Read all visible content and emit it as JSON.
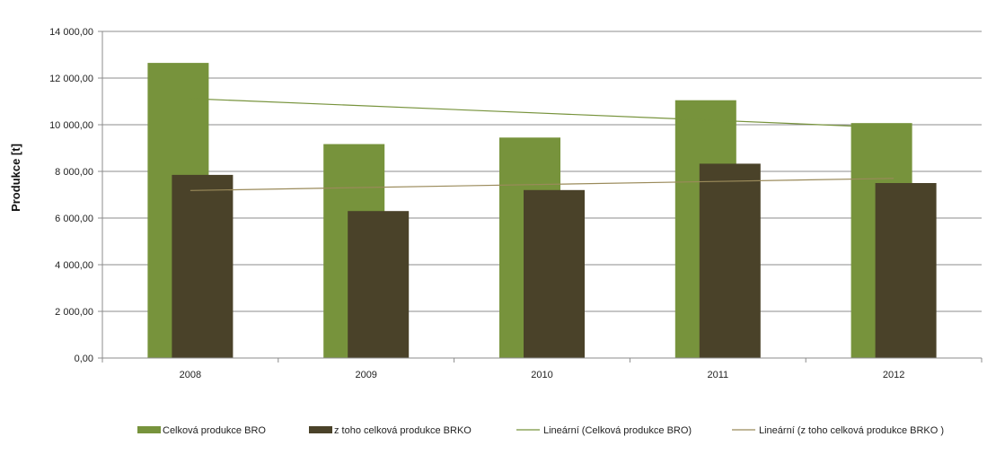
{
  "chart_data": {
    "type": "bar",
    "title": "",
    "xlabel": "",
    "ylabel": "Produkce [t]",
    "categories": [
      "2008",
      "2009",
      "2010",
      "2011",
      "2012"
    ],
    "ylim": [
      0,
      14000
    ],
    "ytick_values": [
      0,
      2000,
      4000,
      6000,
      8000,
      10000,
      12000,
      14000
    ],
    "ytick_labels": [
      "0,00",
      "2 000,00",
      "4 000,00",
      "6 000,00",
      "8 000,00",
      "10 000,00",
      "12 000,00",
      "14 000,00"
    ],
    "grid": true,
    "legend_position": "bottom",
    "series": [
      {
        "name": "Celková produkce BRO",
        "kind": "bar",
        "color": "#77933c",
        "values": [
          12650,
          9170,
          9450,
          11050,
          10070
        ]
      },
      {
        "name": "z toho celková produkce BRKO",
        "kind": "bar",
        "color": "#4a4229",
        "values": [
          7850,
          6300,
          7200,
          8330,
          7500
        ]
      }
    ],
    "trendlines": [
      {
        "name": "Lineární (Celková produkce BRO)",
        "of_series": 0,
        "color": "#77933c",
        "start": 11120,
        "end": 9870
      },
      {
        "name": "Lineární (z toho celková produkce BRKO )",
        "of_series": 1,
        "color": "#9a8a5a",
        "start": 7180,
        "end": 7700
      }
    ]
  }
}
